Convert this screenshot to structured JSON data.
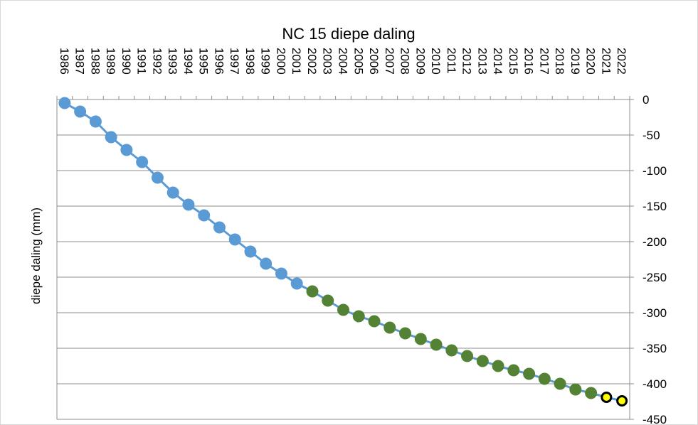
{
  "chart_data": {
    "type": "line",
    "title": "NC 15 diepe daling",
    "xlabel": "",
    "ylabel": "diepe daling (mm)",
    "ylim": [
      -450,
      0
    ],
    "y_ticks": [
      0,
      -50,
      -100,
      -150,
      -200,
      -250,
      -300,
      -350,
      -400,
      -450
    ],
    "y_axis_position": "right",
    "x_axis_position": "top",
    "grid": "horizontal",
    "legend": "none",
    "line_color": "#5b9bd5",
    "x": [
      "1986",
      "1987",
      "1988",
      "1989",
      "1990",
      "1991",
      "1992",
      "1993",
      "1994",
      "1995",
      "1996",
      "1997",
      "1998",
      "1999",
      "2000",
      "2001",
      "2002",
      "2003",
      "2004",
      "2005",
      "2006",
      "2007",
      "2008",
      "2009",
      "2010",
      "2011",
      "2012",
      "2013",
      "2014",
      "2015",
      "2016",
      "2017",
      "2018",
      "2019",
      "2020",
      "2021",
      "2022"
    ],
    "values": [
      -5,
      -17,
      -31,
      -53,
      -71,
      -88,
      -110,
      -131,
      -148,
      -163,
      -180,
      -197,
      -214,
      -231,
      -245,
      -259,
      -270,
      -283,
      -296,
      -305,
      -312,
      -321,
      -329,
      -337,
      -345,
      -353,
      -361,
      -368,
      -375,
      -381,
      -386,
      -393,
      -400,
      -408,
      -413,
      -419,
      -424
    ],
    "marker_colors": [
      "#5b9bd5",
      "#5b9bd5",
      "#5b9bd5",
      "#5b9bd5",
      "#5b9bd5",
      "#5b9bd5",
      "#5b9bd5",
      "#5b9bd5",
      "#5b9bd5",
      "#5b9bd5",
      "#5b9bd5",
      "#5b9bd5",
      "#5b9bd5",
      "#5b9bd5",
      "#5b9bd5",
      "#5b9bd5",
      "#548235",
      "#548235",
      "#548235",
      "#548235",
      "#548235",
      "#548235",
      "#548235",
      "#548235",
      "#548235",
      "#548235",
      "#548235",
      "#548235",
      "#548235",
      "#548235",
      "#548235",
      "#548235",
      "#548235",
      "#548235",
      "#548235",
      "#ffff00",
      "#ffff00"
    ],
    "marker_stroke_colors": [
      "#5b9bd5",
      "#5b9bd5",
      "#5b9bd5",
      "#5b9bd5",
      "#5b9bd5",
      "#5b9bd5",
      "#5b9bd5",
      "#5b9bd5",
      "#5b9bd5",
      "#5b9bd5",
      "#5b9bd5",
      "#5b9bd5",
      "#5b9bd5",
      "#5b9bd5",
      "#5b9bd5",
      "#5b9bd5",
      "#548235",
      "#548235",
      "#548235",
      "#548235",
      "#548235",
      "#548235",
      "#548235",
      "#548235",
      "#548235",
      "#548235",
      "#548235",
      "#548235",
      "#548235",
      "#548235",
      "#548235",
      "#548235",
      "#548235",
      "#548235",
      "#548235",
      "#000000",
      "#000000"
    ]
  }
}
